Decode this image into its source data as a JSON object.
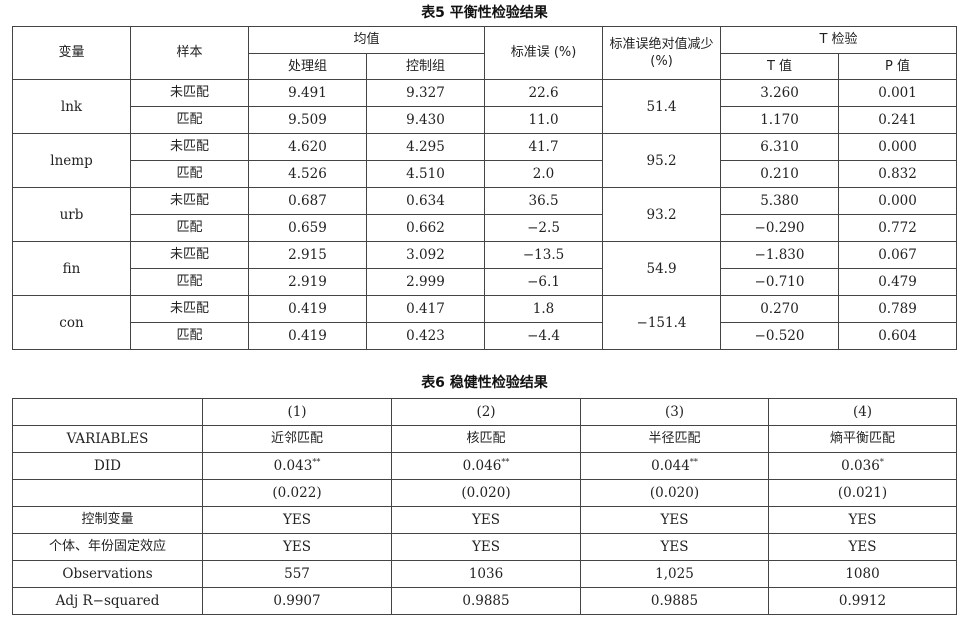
{
  "table5": {
    "caption": "表5  平衡性检验结果",
    "headers": {
      "variable": "变量",
      "sample": "样本",
      "mean": "均值",
      "treated": "处理组",
      "control": "控制组",
      "std_bias": "标准误 (%)",
      "reduction": "标准误绝对值减少 (%)",
      "ttest": "T 检验",
      "t_value": "T 值",
      "p_value": "P 值"
    },
    "groups": [
      {
        "variable": "lnk",
        "reduction": "51.4",
        "rows": [
          {
            "sample": "未匹配",
            "treated": "9.491",
            "control": "9.327",
            "bias": "22.6",
            "t": "3.260",
            "p": "0.001"
          },
          {
            "sample": "匹配",
            "treated": "9.509",
            "control": "9.430",
            "bias": "11.0",
            "t": "1.170",
            "p": "0.241"
          }
        ]
      },
      {
        "variable": "lnemp",
        "reduction": "95.2",
        "rows": [
          {
            "sample": "未匹配",
            "treated": "4.620",
            "control": "4.295",
            "bias": "41.7",
            "t": "6.310",
            "p": "0.000"
          },
          {
            "sample": "匹配",
            "treated": "4.526",
            "control": "4.510",
            "bias": "2.0",
            "t": "0.210",
            "p": "0.832"
          }
        ]
      },
      {
        "variable": "urb",
        "reduction": "93.2",
        "rows": [
          {
            "sample": "未匹配",
            "treated": "0.687",
            "control": "0.634",
            "bias": "36.5",
            "t": "5.380",
            "p": "0.000"
          },
          {
            "sample": "匹配",
            "treated": "0.659",
            "control": "0.662",
            "bias": "−2.5",
            "t": "−0.290",
            "p": "0.772"
          }
        ]
      },
      {
        "variable": "fin",
        "reduction": "54.9",
        "rows": [
          {
            "sample": "未匹配",
            "treated": "2.915",
            "control": "3.092",
            "bias": "−13.5",
            "t": "−1.830",
            "p": "0.067"
          },
          {
            "sample": "匹配",
            "treated": "2.919",
            "control": "2.999",
            "bias": "−6.1",
            "t": "−0.710",
            "p": "0.479"
          }
        ]
      },
      {
        "variable": "con",
        "reduction": "−151.4",
        "rows": [
          {
            "sample": "未匹配",
            "treated": "0.419",
            "control": "0.417",
            "bias": "1.8",
            "t": "0.270",
            "p": "0.789"
          },
          {
            "sample": "匹配",
            "treated": "0.419",
            "control": "0.423",
            "bias": "−4.4",
            "t": "−0.520",
            "p": "0.604"
          }
        ]
      }
    ]
  },
  "table6": {
    "caption": "表6  稳健性检验结果",
    "columns": [
      "(1)",
      "(2)",
      "(3)",
      "(4)"
    ],
    "rows": [
      {
        "label": "VARIABLES",
        "cells": [
          {
            "v": "近邻匹配",
            "s": ""
          },
          {
            "v": "核匹配",
            "s": ""
          },
          {
            "v": "半径匹配",
            "s": ""
          },
          {
            "v": "熵平衡匹配",
            "s": ""
          }
        ]
      },
      {
        "label": "DID",
        "cells": [
          {
            "v": "0.043",
            "s": "**"
          },
          {
            "v": "0.046",
            "s": "**"
          },
          {
            "v": "0.044",
            "s": "**"
          },
          {
            "v": "0.036",
            "s": "*"
          }
        ]
      },
      {
        "label": "",
        "cells": [
          {
            "v": "(0.022)",
            "s": ""
          },
          {
            "v": "(0.020)",
            "s": ""
          },
          {
            "v": "(0.020)",
            "s": ""
          },
          {
            "v": "(0.021)",
            "s": ""
          }
        ]
      },
      {
        "label": "控制变量",
        "cells": [
          {
            "v": "YES",
            "s": ""
          },
          {
            "v": "YES",
            "s": ""
          },
          {
            "v": "YES",
            "s": ""
          },
          {
            "v": "YES",
            "s": ""
          }
        ]
      },
      {
        "label": "个体、年份固定效应",
        "cells": [
          {
            "v": "YES",
            "s": ""
          },
          {
            "v": "YES",
            "s": ""
          },
          {
            "v": "YES",
            "s": ""
          },
          {
            "v": "YES",
            "s": ""
          }
        ]
      },
      {
        "label": "Observations",
        "cells": [
          {
            "v": "557",
            "s": ""
          },
          {
            "v": "1036",
            "s": ""
          },
          {
            "v": "1,025",
            "s": ""
          },
          {
            "v": "1080",
            "s": ""
          }
        ]
      },
      {
        "label": "Adj R−squared",
        "cells": [
          {
            "v": "0.9907",
            "s": ""
          },
          {
            "v": "0.9885",
            "s": ""
          },
          {
            "v": "0.9885",
            "s": ""
          },
          {
            "v": "0.9912",
            "s": ""
          }
        ]
      }
    ]
  }
}
